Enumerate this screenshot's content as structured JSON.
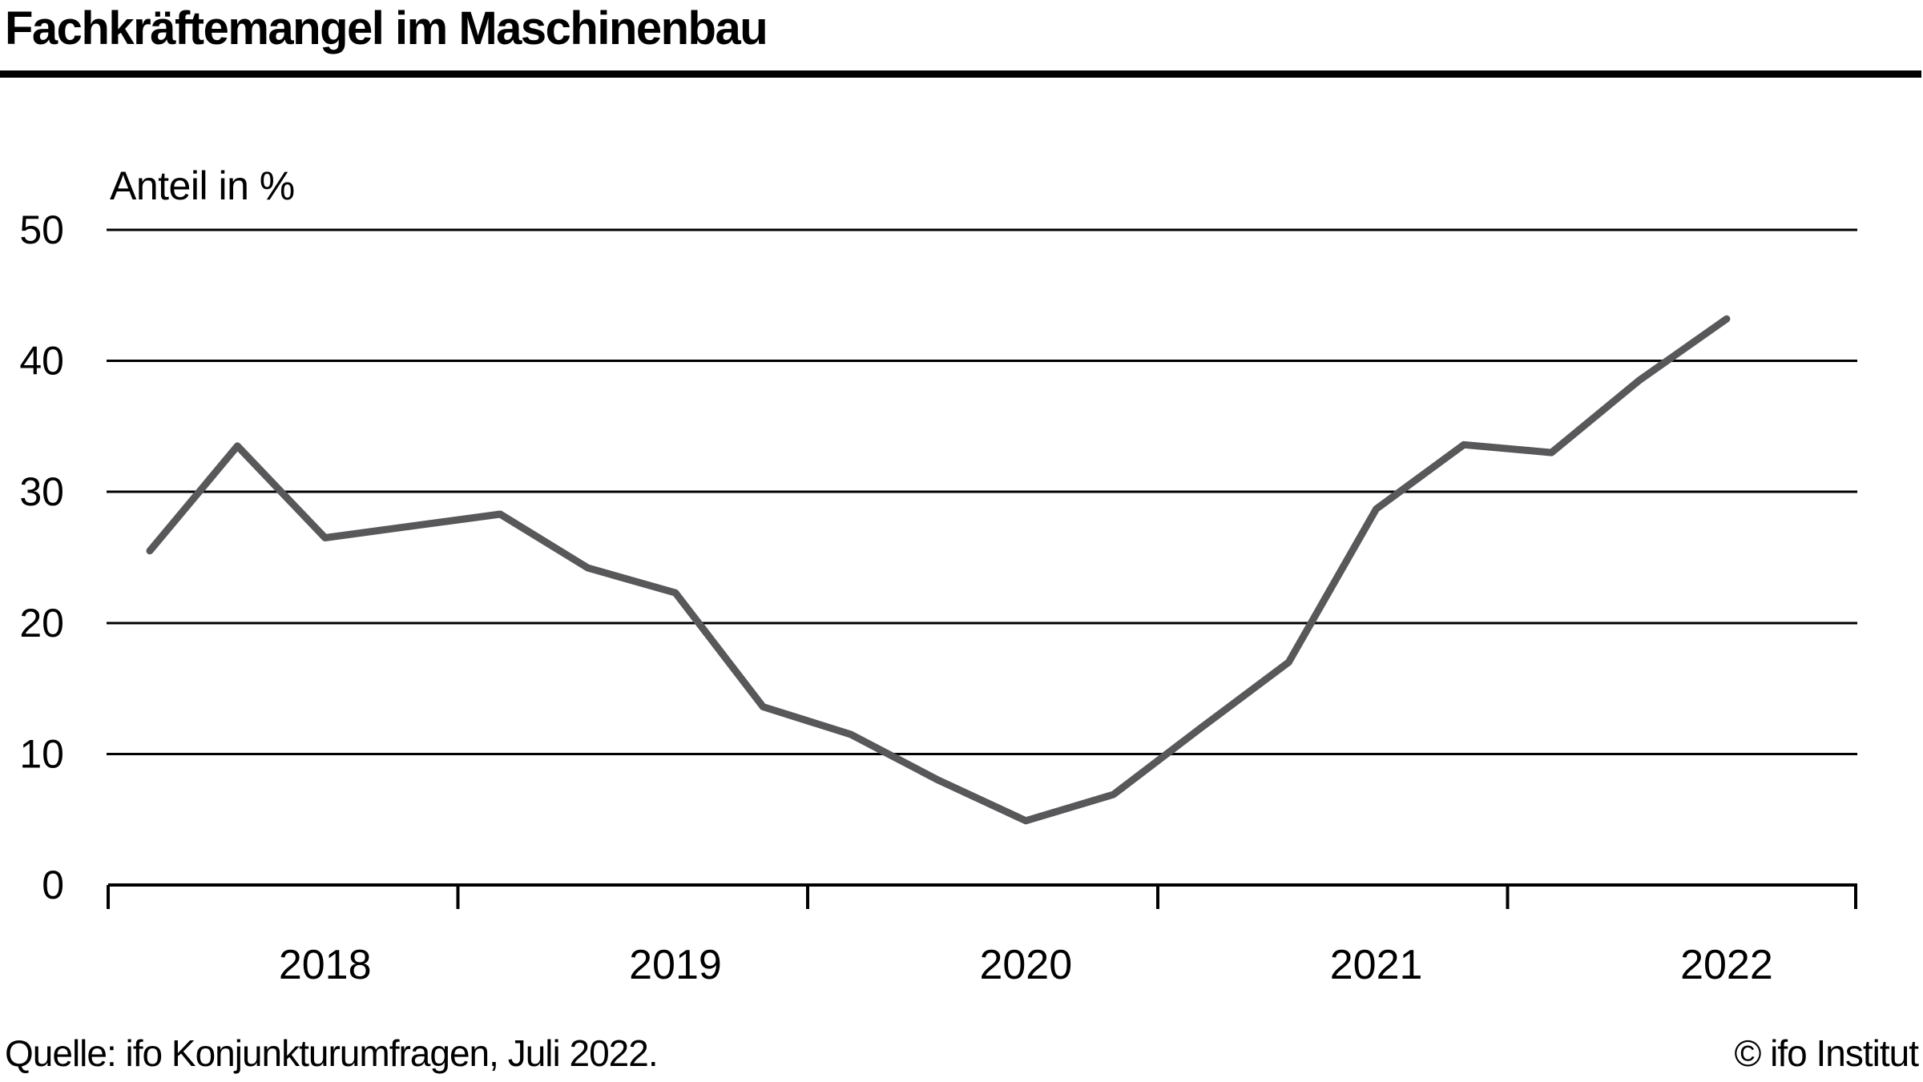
{
  "title": "Fachkräftemangel im Maschinenbau",
  "footer": {
    "source": "Quelle: ifo Konjunkturumfragen, Juli 2022.",
    "copyright": "© ifo Institut"
  },
  "chart_data": {
    "type": "line",
    "title": "Fachkräftemangel im Maschinenbau",
    "ylabel": "Anteil in %",
    "xlabel": "",
    "ylim": [
      0,
      50
    ],
    "yticks": [
      0,
      10,
      20,
      30,
      40,
      50
    ],
    "grid": "horizontal",
    "legend": "none",
    "line_color": "#58585a",
    "grid_color": "#000000",
    "x_tick_years": [
      "2018",
      "2019",
      "2020",
      "2021",
      "2022"
    ],
    "x": [
      "2018-Q1",
      "2018-Q2",
      "2018-Q3",
      "2018-Q4",
      "2019-Q1",
      "2019-Q2",
      "2019-Q3",
      "2019-Q4",
      "2020-Q1",
      "2020-Q2",
      "2020-Q3",
      "2020-Q4",
      "2021-Q1",
      "2021-Q2",
      "2021-Q3",
      "2021-Q4",
      "2022-Q1",
      "2022-Q2",
      "2022-Q3"
    ],
    "values": [
      25.5,
      33.5,
      26.5,
      27.4,
      28.3,
      24.2,
      22.3,
      13.6,
      11.5,
      8.0,
      4.9,
      6.9,
      12.0,
      17.0,
      28.7,
      33.6,
      33.0,
      38.5,
      43.2
    ]
  }
}
